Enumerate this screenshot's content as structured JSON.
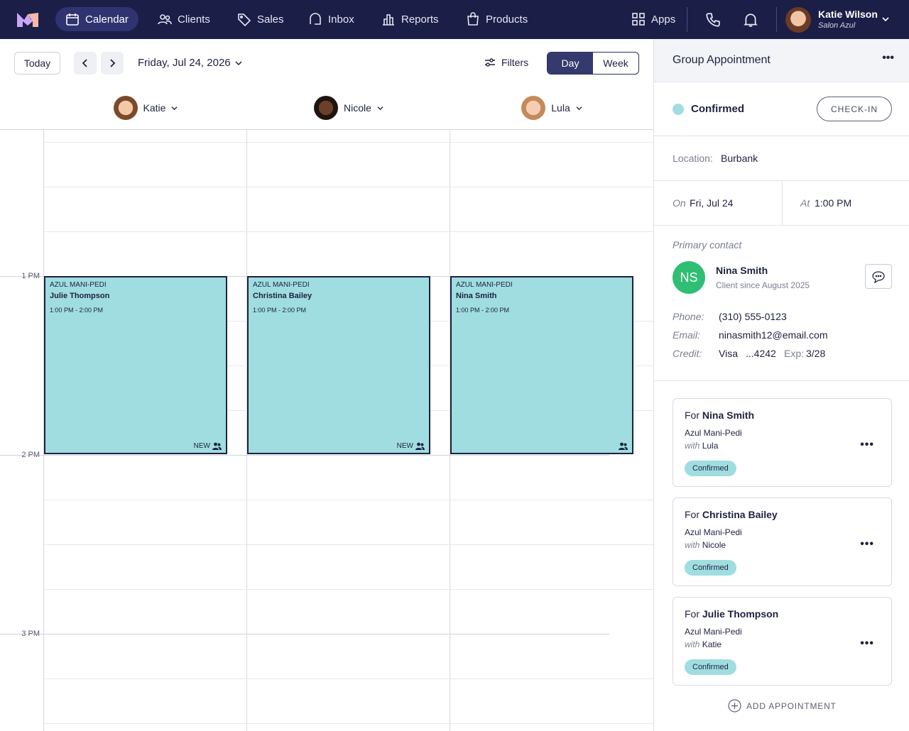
{
  "nav": {
    "items": [
      "Calendar",
      "Clients",
      "Sales",
      "Inbox",
      "Reports",
      "Products"
    ],
    "apps": "Apps",
    "user": {
      "name": "Katie Wilson",
      "salon": "Salon Azul"
    }
  },
  "toolbar": {
    "today": "Today",
    "date": "Friday, Jul 24, 2026",
    "filters": "Filters",
    "views": [
      "Day",
      "Week"
    ]
  },
  "staff": [
    "Katie",
    "Nicole",
    "Lula"
  ],
  "times": [
    "1 PM",
    "2 PM",
    "3 PM"
  ],
  "appointments": [
    {
      "service": "AZUL MANI-PEDI",
      "client": "Julie Thompson",
      "time": "1:00 PM - 2:00 PM",
      "badge": "NEW"
    },
    {
      "service": "AZUL MANI-PEDI",
      "client": "Christina Bailey",
      "time": "1:00 PM - 2:00 PM",
      "badge": "NEW"
    },
    {
      "service": "AZUL MANI-PEDI",
      "client": "Nina Smith",
      "time": "1:00 PM - 2:00 PM"
    }
  ],
  "panel": {
    "title": "Group Appointment",
    "status": "Confirmed",
    "checkin": "CHECK-IN",
    "location_label": "Location:",
    "location": "Burbank",
    "on_label": "On",
    "on": "Fri, Jul 24",
    "at_label": "At",
    "at": "1:00 PM",
    "contact_heading": "Primary contact",
    "initials": "NS",
    "contact_name": "Nina Smith",
    "client_since": "Client since August 2025",
    "phone_label": "Phone:",
    "phone": "(310) 555-0123",
    "email_label": "Email:",
    "email": "ninasmith12@email.com",
    "credit_label": "Credit:",
    "card": "Visa",
    "card_number": "...4242",
    "exp_label": "Exp:",
    "exp": "3/28",
    "bookings": [
      {
        "for": "For",
        "client": "Nina Smith",
        "service": "Azul Mani-Pedi",
        "with": "with",
        "staff": "Lula",
        "status": "Confirmed"
      },
      {
        "for": "For",
        "client": "Christina Bailey",
        "service": "Azul Mani-Pedi",
        "with": "with",
        "staff": "Nicole",
        "status": "Confirmed"
      },
      {
        "for": "For",
        "client": "Julie Thompson",
        "service": "Azul Mani-Pedi",
        "with": "with",
        "staff": "Katie",
        "status": "Confirmed"
      }
    ],
    "add": "ADD APPOINTMENT"
  }
}
